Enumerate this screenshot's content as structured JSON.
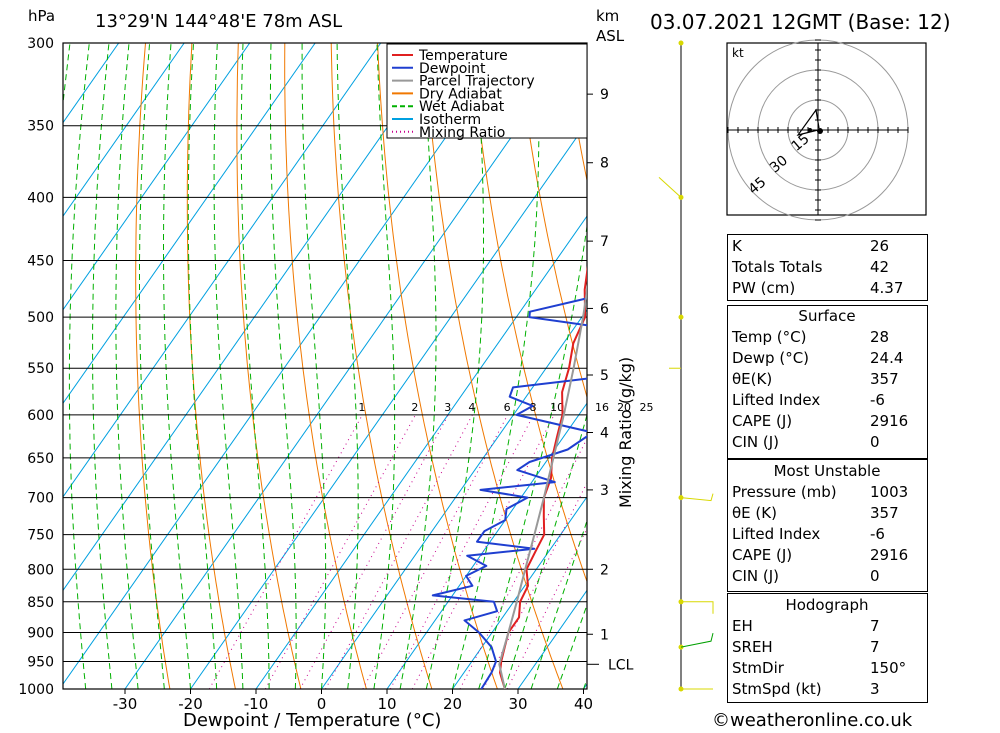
{
  "header": {
    "hpa_unit": "hPa",
    "location": "13°29'N  144°48'E  78m  ASL",
    "km_unit": "km",
    "asl": "ASL",
    "datetime": "03.07.2021  12GMT  (Base: 12)"
  },
  "chart_data": {
    "type": "line",
    "title": "",
    "xlabel": "Dewpoint / Temperature (°C)",
    "ylabel": "hPa",
    "right_label": "Mixing Ratio (g/kg)",
    "xlim": [
      -40,
      40
    ],
    "ylim": [
      1000,
      300
    ],
    "pressure_ticks": [
      300,
      350,
      400,
      450,
      500,
      550,
      600,
      650,
      700,
      750,
      800,
      850,
      900,
      950,
      1000
    ],
    "temp_ticks": [
      -30,
      -20,
      -10,
      0,
      10,
      20,
      30,
      40
    ],
    "km_ticks": [
      {
        "label": "1",
        "p": 903
      },
      {
        "label": "2",
        "p": 800
      },
      {
        "label": "3",
        "p": 690
      },
      {
        "label": "4",
        "p": 620
      },
      {
        "label": "5",
        "p": 557
      },
      {
        "label": "6",
        "p": 492
      },
      {
        "label": "7",
        "p": 434
      },
      {
        "label": "8",
        "p": 375
      },
      {
        "label": "9",
        "p": 330
      }
    ],
    "lcl": {
      "label": "LCL",
      "p": 955
    },
    "mixing_ratio_labels": [
      "1",
      "2",
      "3",
      "4",
      "6",
      "8",
      "10",
      "16",
      "20",
      "25"
    ],
    "legend": {
      "position": "top-right",
      "items": [
        {
          "name": "Temperature",
          "color": "#e02020",
          "style": "solid"
        },
        {
          "name": "Dewpoint",
          "color": "#1f3fd0",
          "style": "solid"
        },
        {
          "name": "Parcel Trajectory",
          "color": "#999999",
          "style": "solid"
        },
        {
          "name": "Dry Adiabat",
          "color": "#f07800",
          "style": "solid"
        },
        {
          "name": "Wet Adiabat",
          "color": "#00b000",
          "style": "dashed"
        },
        {
          "name": "Isotherm",
          "color": "#00a0e0",
          "style": "solid"
        },
        {
          "name": "Mixing Ratio",
          "color": "#c8008c",
          "style": "dotted"
        }
      ]
    },
    "series": [
      {
        "name": "Temperature",
        "points": [
          [
            1000,
            28
          ],
          [
            970,
            25.5
          ],
          [
            950,
            24.5
          ],
          [
            925,
            23.5
          ],
          [
            900,
            22.5
          ],
          [
            875,
            22.5
          ],
          [
            850,
            21.0
          ],
          [
            825,
            20.5
          ],
          [
            800,
            18.5
          ],
          [
            775,
            18.0
          ],
          [
            750,
            17.5
          ],
          [
            725,
            15.5
          ],
          [
            700,
            13.5
          ],
          [
            675,
            12.5
          ],
          [
            650,
            10.5
          ],
          [
            625,
            9.0
          ],
          [
            600,
            7.5
          ],
          [
            575,
            5.0
          ],
          [
            550,
            3.5
          ],
          [
            525,
            1.5
          ],
          [
            500,
            0.5
          ],
          [
            475,
            -2.5
          ],
          [
            450,
            -5.0
          ],
          [
            425,
            -7.0
          ],
          [
            400,
            -9.5
          ],
          [
            375,
            -13.0
          ],
          [
            360,
            -15.5
          ]
        ]
      },
      {
        "name": "Dewpoint",
        "points": [
          [
            1000,
            24.4
          ],
          [
            970,
            24.2
          ],
          [
            950,
            23.7
          ],
          [
            925,
            21.5
          ],
          [
            900,
            18.0
          ],
          [
            880,
            14.5
          ],
          [
            865,
            18.5
          ],
          [
            850,
            17.0
          ],
          [
            840,
            7.0
          ],
          [
            825,
            12.0
          ],
          [
            810,
            10.0
          ],
          [
            795,
            12.0
          ],
          [
            780,
            8.0
          ],
          [
            770,
            17.5
          ],
          [
            760,
            8.0
          ],
          [
            745,
            8.0
          ],
          [
            730,
            10.0
          ],
          [
            715,
            9.0
          ],
          [
            700,
            11.0
          ],
          [
            690,
            3.0
          ],
          [
            680,
            13.5
          ],
          [
            665,
            6.5
          ],
          [
            655,
            7.5
          ],
          [
            640,
            12.0
          ],
          [
            620,
            14.0
          ],
          [
            600,
            0.5
          ],
          [
            590,
            2.0
          ],
          [
            580,
            -2.5
          ],
          [
            570,
            -3.0
          ],
          [
            555,
            14.0
          ],
          [
            540,
            8.0
          ],
          [
            525,
            10.5
          ],
          [
            510,
            4.5
          ],
          [
            500,
            -8.0
          ],
          [
            495,
            -8.5
          ],
          [
            480,
            0.5
          ],
          [
            470,
            -1.0
          ],
          [
            460,
            -3.0
          ],
          [
            450,
            -2.0
          ],
          [
            440,
            3.0
          ],
          [
            430,
            2.5
          ],
          [
            420,
            0.5
          ],
          [
            410,
            -3.5
          ],
          [
            400,
            -5.0
          ],
          [
            385,
            -5.0
          ],
          [
            375,
            -6.5
          ],
          [
            365,
            -6.0
          ],
          [
            355,
            -3.5
          ],
          [
            340,
            -7.5
          ],
          [
            320,
            -11.5
          ],
          [
            300,
            -14.0
          ]
        ]
      },
      {
        "name": "Parcel Trajectory",
        "points": [
          [
            1000,
            28
          ],
          [
            955,
            24.5
          ],
          [
            900,
            22.5
          ],
          [
            850,
            20.5
          ],
          [
            800,
            18.3
          ],
          [
            750,
            16.0
          ],
          [
            700,
            13.5
          ],
          [
            650,
            10.7
          ],
          [
            600,
            7.7
          ],
          [
            550,
            4.2
          ],
          [
            500,
            0.2
          ],
          [
            450,
            -4.6
          ],
          [
            400,
            -10.5
          ],
          [
            370,
            -14.5
          ]
        ]
      }
    ],
    "hodograph": {
      "unit": "kt",
      "ring_labels": [
        "15",
        "30",
        "45"
      ]
    }
  },
  "indices": {
    "k_label": "K",
    "k_value": "26",
    "tt_label": "Totals Totals",
    "tt_value": "42",
    "pw_label": "PW (cm)",
    "pw_value": "4.37"
  },
  "surface": {
    "title": "Surface",
    "temp_label": "Temp (°C)",
    "temp_value": "28",
    "dewp_label": "Dewp (°C)",
    "dewp_value": "24.4",
    "theta_label": "θE(K)",
    "theta_value": "357",
    "li_label": "Lifted Index",
    "li_value": "-6",
    "cape_label": "CAPE (J)",
    "cape_value": "2916",
    "cin_label": "CIN (J)",
    "cin_value": "0"
  },
  "most_unstable": {
    "title": "Most Unstable",
    "pressure_label": "Pressure (mb)",
    "pressure_value": "1003",
    "theta_label": "θE (K)",
    "theta_value": "357",
    "li_label": "Lifted Index",
    "li_value": "-6",
    "cape_label": "CAPE (J)",
    "cape_value": "2916",
    "cin_label": "CIN (J)",
    "cin_value": "0"
  },
  "hodograph_table": {
    "title": "Hodograph",
    "eh_label": "EH",
    "eh_value": "7",
    "sreh_label": "SREH",
    "sreh_value": "7",
    "stmdir_label": "StmDir",
    "stmdir_value": "150°",
    "stmspd_label": "StmSpd (kt)",
    "stmspd_value": "3"
  },
  "footer": {
    "credit": "©weatheronline.co.uk"
  }
}
